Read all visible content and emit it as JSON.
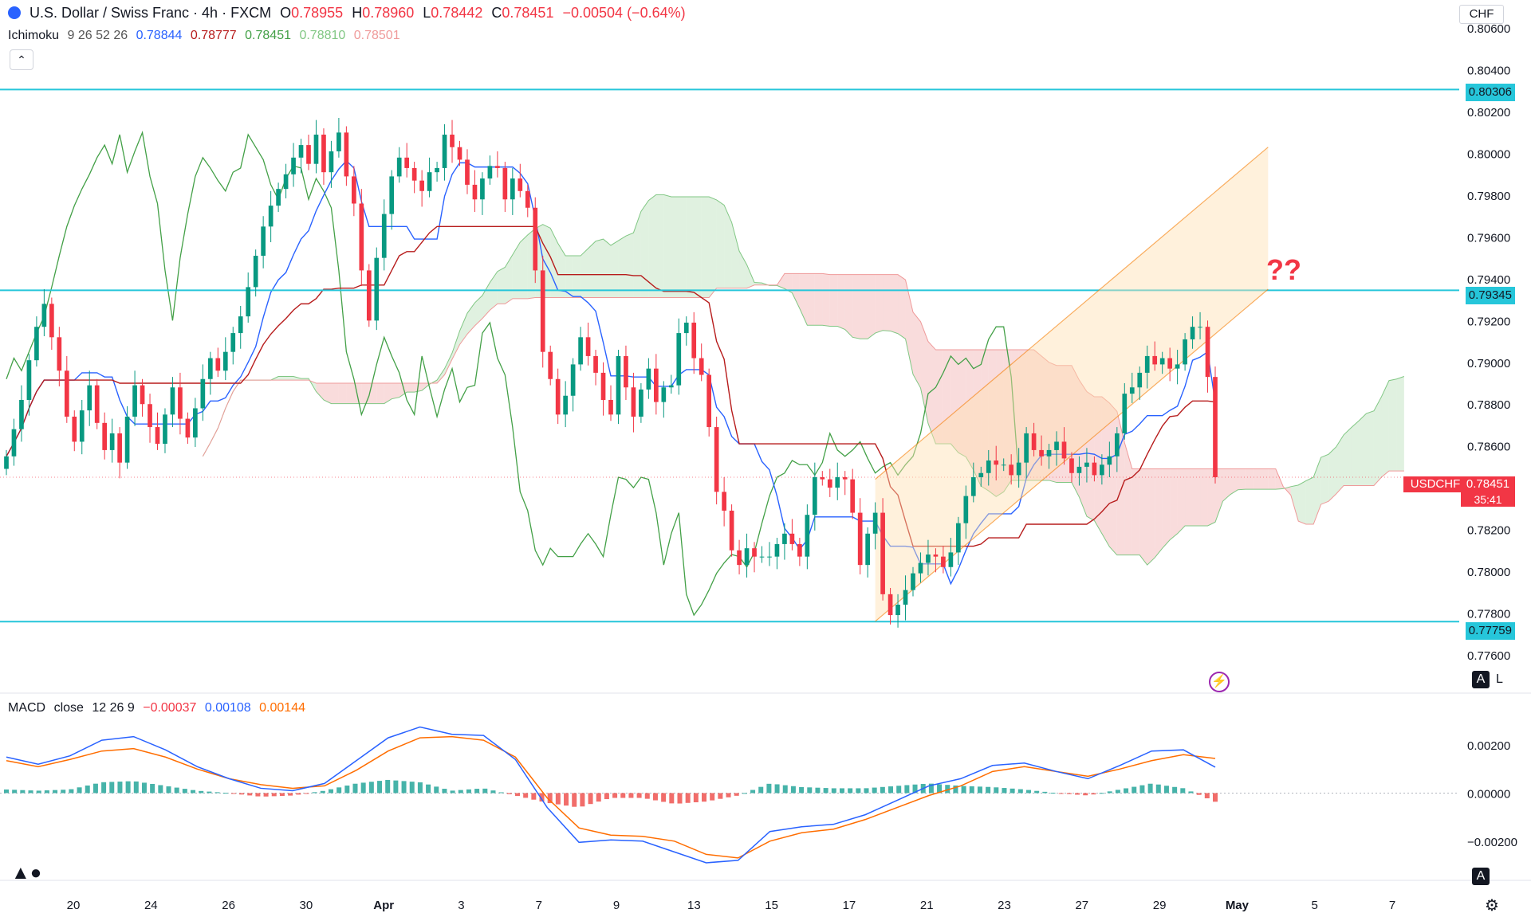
{
  "header": {
    "symbol_title": "U.S. Dollar / Swiss Franc · 4h · FXCM",
    "open_label": "O",
    "open": "0.78955",
    "high_label": "H",
    "high": "0.78960",
    "low_label": "L",
    "low": "0.78442",
    "close_label": "C",
    "close": "0.78451",
    "change": "−0.00504 (−0.64%)",
    "indicator_name": "Ichimoku",
    "indicator_params": "9 26 52 26",
    "ichimoku_values": [
      "0.78844",
      "0.78777",
      "0.78451",
      "0.78810",
      "0.78501"
    ],
    "collapse_icon": "chevron-up-icon"
  },
  "currency_button": "CHF",
  "annotation": "??",
  "price_tag": {
    "symbol": "USDCHF",
    "value": "0.78451",
    "countdown": "35:41"
  },
  "levels": [
    "0.80306",
    "0.79345",
    "0.77759"
  ],
  "macd_header": {
    "name": "MACD",
    "source": "close",
    "params": "12 26 9",
    "values": [
      "−0.00037",
      "0.00108",
      "0.00144"
    ]
  },
  "auto_log": {
    "auto": "A",
    "log": "L"
  },
  "colors": {
    "up": "#089981",
    "down": "#f23645",
    "level_line": "#26c6da",
    "tenkan": "#2962ff",
    "kijun": "#b71c1c",
    "chikou": "#43a047",
    "cloud_bull": "#a5d6a7",
    "cloud_bear": "#ef9a9a",
    "channel": "#f57c00",
    "macd": "#2962ff",
    "signal": "#ff6d00"
  },
  "chart_data": {
    "type": "candlestick",
    "symbol": "USDCHF",
    "timeframe": "4h",
    "price_axis": {
      "ticks": [
        "0.80600",
        "0.80400",
        "0.80200",
        "0.80000",
        "0.79800",
        "0.79600",
        "0.79400",
        "0.79200",
        "0.79000",
        "0.78800",
        "0.78600",
        "0.78200",
        "0.78000",
        "0.77800",
        "0.77600"
      ],
      "range": [
        0.7755,
        0.8062
      ]
    },
    "time_axis": [
      "20",
      "24",
      "26",
      "30",
      "Apr",
      "3",
      "7",
      "9",
      "13",
      "15",
      "17",
      "21",
      "23",
      "27",
      "29",
      "May",
      "5",
      "7"
    ],
    "horizontal_levels": [
      0.80306,
      0.79345,
      0.77759
    ],
    "closes": [
      0.7855,
      0.7868,
      0.7882,
      0.7901,
      0.7917,
      0.7928,
      0.7912,
      0.7896,
      0.7874,
      0.7862,
      0.7877,
      0.7889,
      0.7871,
      0.7858,
      0.7866,
      0.7852,
      0.7874,
      0.7889,
      0.788,
      0.7869,
      0.7861,
      0.7875,
      0.7888,
      0.7873,
      0.7864,
      0.7878,
      0.7892,
      0.7902,
      0.7896,
      0.7905,
      0.7914,
      0.7922,
      0.7936,
      0.7951,
      0.7965,
      0.7975,
      0.7983,
      0.799,
      0.7998,
      0.8004,
      0.7995,
      0.8009,
      0.7991,
      0.8001,
      0.801,
      0.7989,
      0.7976,
      0.7944,
      0.792,
      0.795,
      0.7971,
      0.7989,
      0.7998,
      0.7993,
      0.7987,
      0.7982,
      0.7991,
      0.7993,
      0.8009,
      0.8003,
      0.7997,
      0.7985,
      0.7978,
      0.7988,
      0.7994,
      0.7993,
      0.7978,
      0.7988,
      0.7982,
      0.7974,
      0.7944,
      0.7905,
      0.7892,
      0.7875,
      0.7884,
      0.7899,
      0.7912,
      0.7903,
      0.7895,
      0.7882,
      0.7875,
      0.7903,
      0.7888,
      0.7874,
      0.7887,
      0.7897,
      0.7881,
      0.7888,
      0.7889,
      0.7914,
      0.7919,
      0.7902,
      0.7894,
      0.7869,
      0.7838,
      0.7829,
      0.781,
      0.7803,
      0.7811,
      0.7807,
      0.7807,
      0.7807,
      0.7813,
      0.7818,
      0.7813,
      0.7807,
      0.7827,
      0.7845,
      0.7844,
      0.784,
      0.7845,
      0.7844,
      0.7828,
      0.7803,
      0.7818,
      0.7828,
      0.7789,
      0.7779,
      0.7784,
      0.7791,
      0.7799,
      0.7804,
      0.7808,
      0.7807,
      0.7802,
      0.7809,
      0.7823,
      0.7836,
      0.7845,
      0.7847,
      0.7853,
      0.7851,
      0.7851,
      0.7846,
      0.7852,
      0.7866,
      0.7858,
      0.7855,
      0.7858,
      0.7862,
      0.7854,
      0.7847,
      0.785,
      0.7852,
      0.7846,
      0.7851,
      0.7855,
      0.7866,
      0.7885,
      0.7888,
      0.7895,
      0.7903,
      0.7899,
      0.7902,
      0.7897,
      0.7899,
      0.7911,
      0.7917,
      0.7917,
      0.7893,
      0.7845
    ],
    "macd": {
      "axis_ticks": [
        "0.00200",
        "0.00000",
        "−0.00200"
      ],
      "range": [
        -0.0033,
        0.003
      ],
      "macd_line": [
        0.0015,
        0.0012,
        0.00155,
        0.0022,
        0.00235,
        0.0018,
        0.0011,
        0.0006,
        0.0002,
        0.0001,
        0.0004,
        0.00135,
        0.0023,
        0.00275,
        0.00245,
        0.0024,
        0.0014,
        -0.0006,
        -0.00205,
        -0.00195,
        -0.002,
        -0.00245,
        -0.0029,
        -0.0028,
        -0.0016,
        -0.0014,
        -0.0013,
        -0.0009,
        -0.0003,
        0.0003,
        0.0006,
        0.00115,
        0.00125,
        0.0009,
        0.0006,
        0.00115,
        0.00175,
        0.0018,
        0.00108
      ],
      "signal_line": [
        0.00135,
        0.0011,
        0.0014,
        0.00175,
        0.00185,
        0.0015,
        0.001,
        0.0006,
        0.00035,
        0.0002,
        0.0003,
        0.00095,
        0.00175,
        0.0023,
        0.00235,
        0.0022,
        0.0015,
        -0.0002,
        -0.00145,
        -0.00175,
        -0.0018,
        -0.002,
        -0.00255,
        -0.0027,
        -0.002,
        -0.00165,
        -0.0015,
        -0.0011,
        -0.0006,
        -0.0001,
        0.0003,
        0.0009,
        0.0011,
        0.0009,
        0.0007,
        0.001,
        0.00135,
        0.0016,
        0.00144
      ]
    }
  }
}
